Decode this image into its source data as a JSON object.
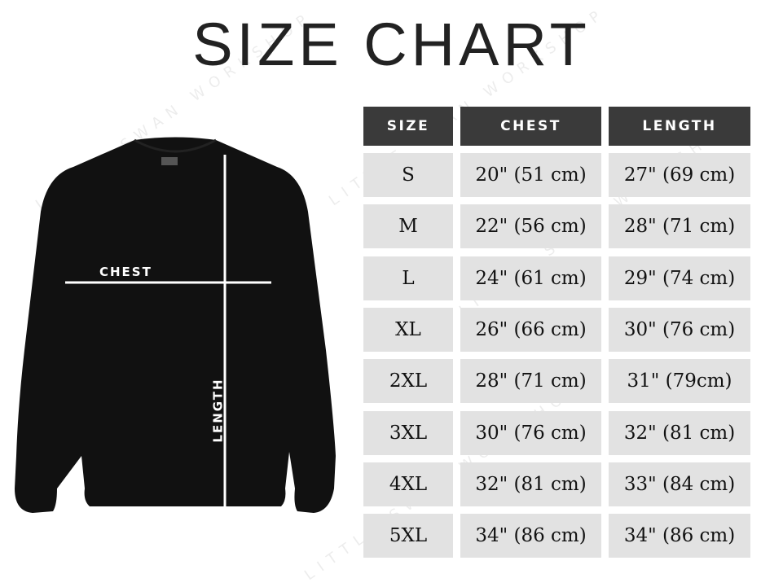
{
  "title": "SIZE CHART",
  "watermark": "LITTLE SWAN WORKSHOP",
  "garment": {
    "chest_label": "CHEST",
    "length_label": "LENGTH",
    "color": "#111111"
  },
  "table": {
    "headers": [
      "SIZE",
      "CHEST",
      "LENGTH"
    ],
    "header_color": "#3a3a3a",
    "cell_color": "#e2e2e2",
    "rows": [
      [
        "S",
        "20\" (51 cm)",
        "27\" (69 cm)"
      ],
      [
        "M",
        "22\" (56 cm)",
        "28\" (71 cm)"
      ],
      [
        "L",
        "24\" (61 cm)",
        "29\" (74 cm)"
      ],
      [
        "XL",
        "26\" (66 cm)",
        "30\" (76 cm)"
      ],
      [
        "2XL",
        "28\" (71 cm)",
        "31\" (79cm)"
      ],
      [
        "3XL",
        "30\" (76 cm)",
        "32\" (81 cm)"
      ],
      [
        "4XL",
        "32\" (81 cm)",
        "33\" (84 cm)"
      ],
      [
        "5XL",
        "34\" (86 cm)",
        "34\" (86 cm)"
      ]
    ]
  }
}
